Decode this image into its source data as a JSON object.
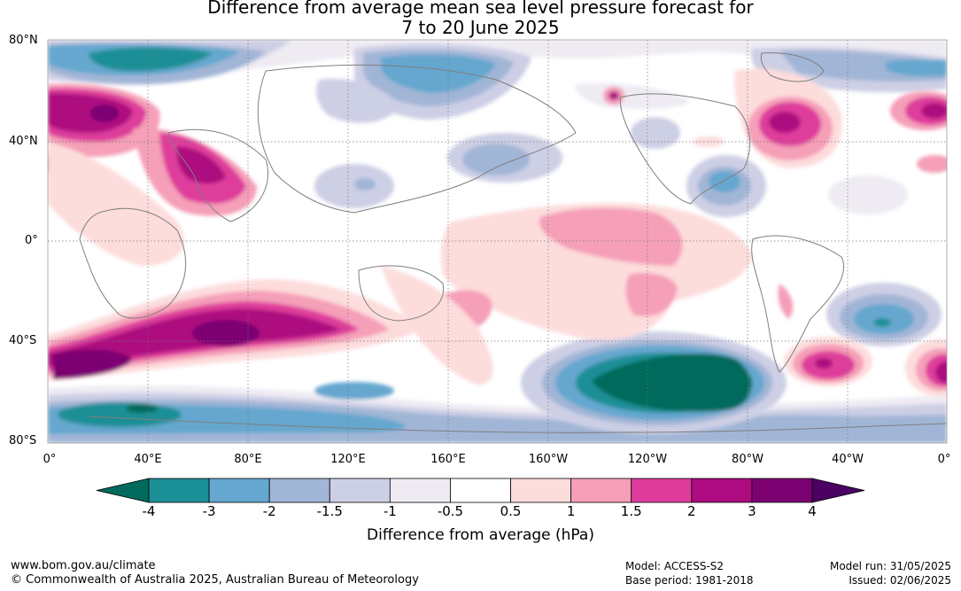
{
  "title": {
    "line1": "Difference from average mean sea level pressure forecast for",
    "line2": "7 to 20 June 2025"
  },
  "map": {
    "lat_labels": [
      "80°N",
      "40°N",
      "0°",
      "40°S",
      "80°S"
    ],
    "lon_labels": [
      "0°",
      "40°E",
      "80°E",
      "120°E",
      "160°E",
      "160°W",
      "120°W",
      "80°W",
      "40°W",
      "0°"
    ]
  },
  "legend": {
    "title": "Difference from average (hPa)",
    "ticks": [
      "-4",
      "-3",
      "-2",
      "-1.5",
      "-1",
      "-0.5",
      "0.5",
      "1",
      "1.5",
      "2",
      "3",
      "4"
    ],
    "colors": [
      "#1b8f96",
      "#65a7cf",
      "#a1b5d6",
      "#cdcfe5",
      "#efebf3",
      "#ffffff",
      "#fddcdc",
      "#f59fb8",
      "#de3c9b",
      "#ad0b7f",
      "#7c0272"
    ],
    "under_color": "#006b5c",
    "over_color": "#4a0162"
  },
  "footer": {
    "website": "www.bom.gov.au/climate",
    "copyright": "© Commonwealth of Australia 2025, Australian Bureau of Meteorology",
    "model": "Model: ACCESS-S2",
    "base_period": "Base period: 1981-2018",
    "model_run": "Model run: 31/05/2025",
    "issued": "Issued: 02/06/2025"
  }
}
